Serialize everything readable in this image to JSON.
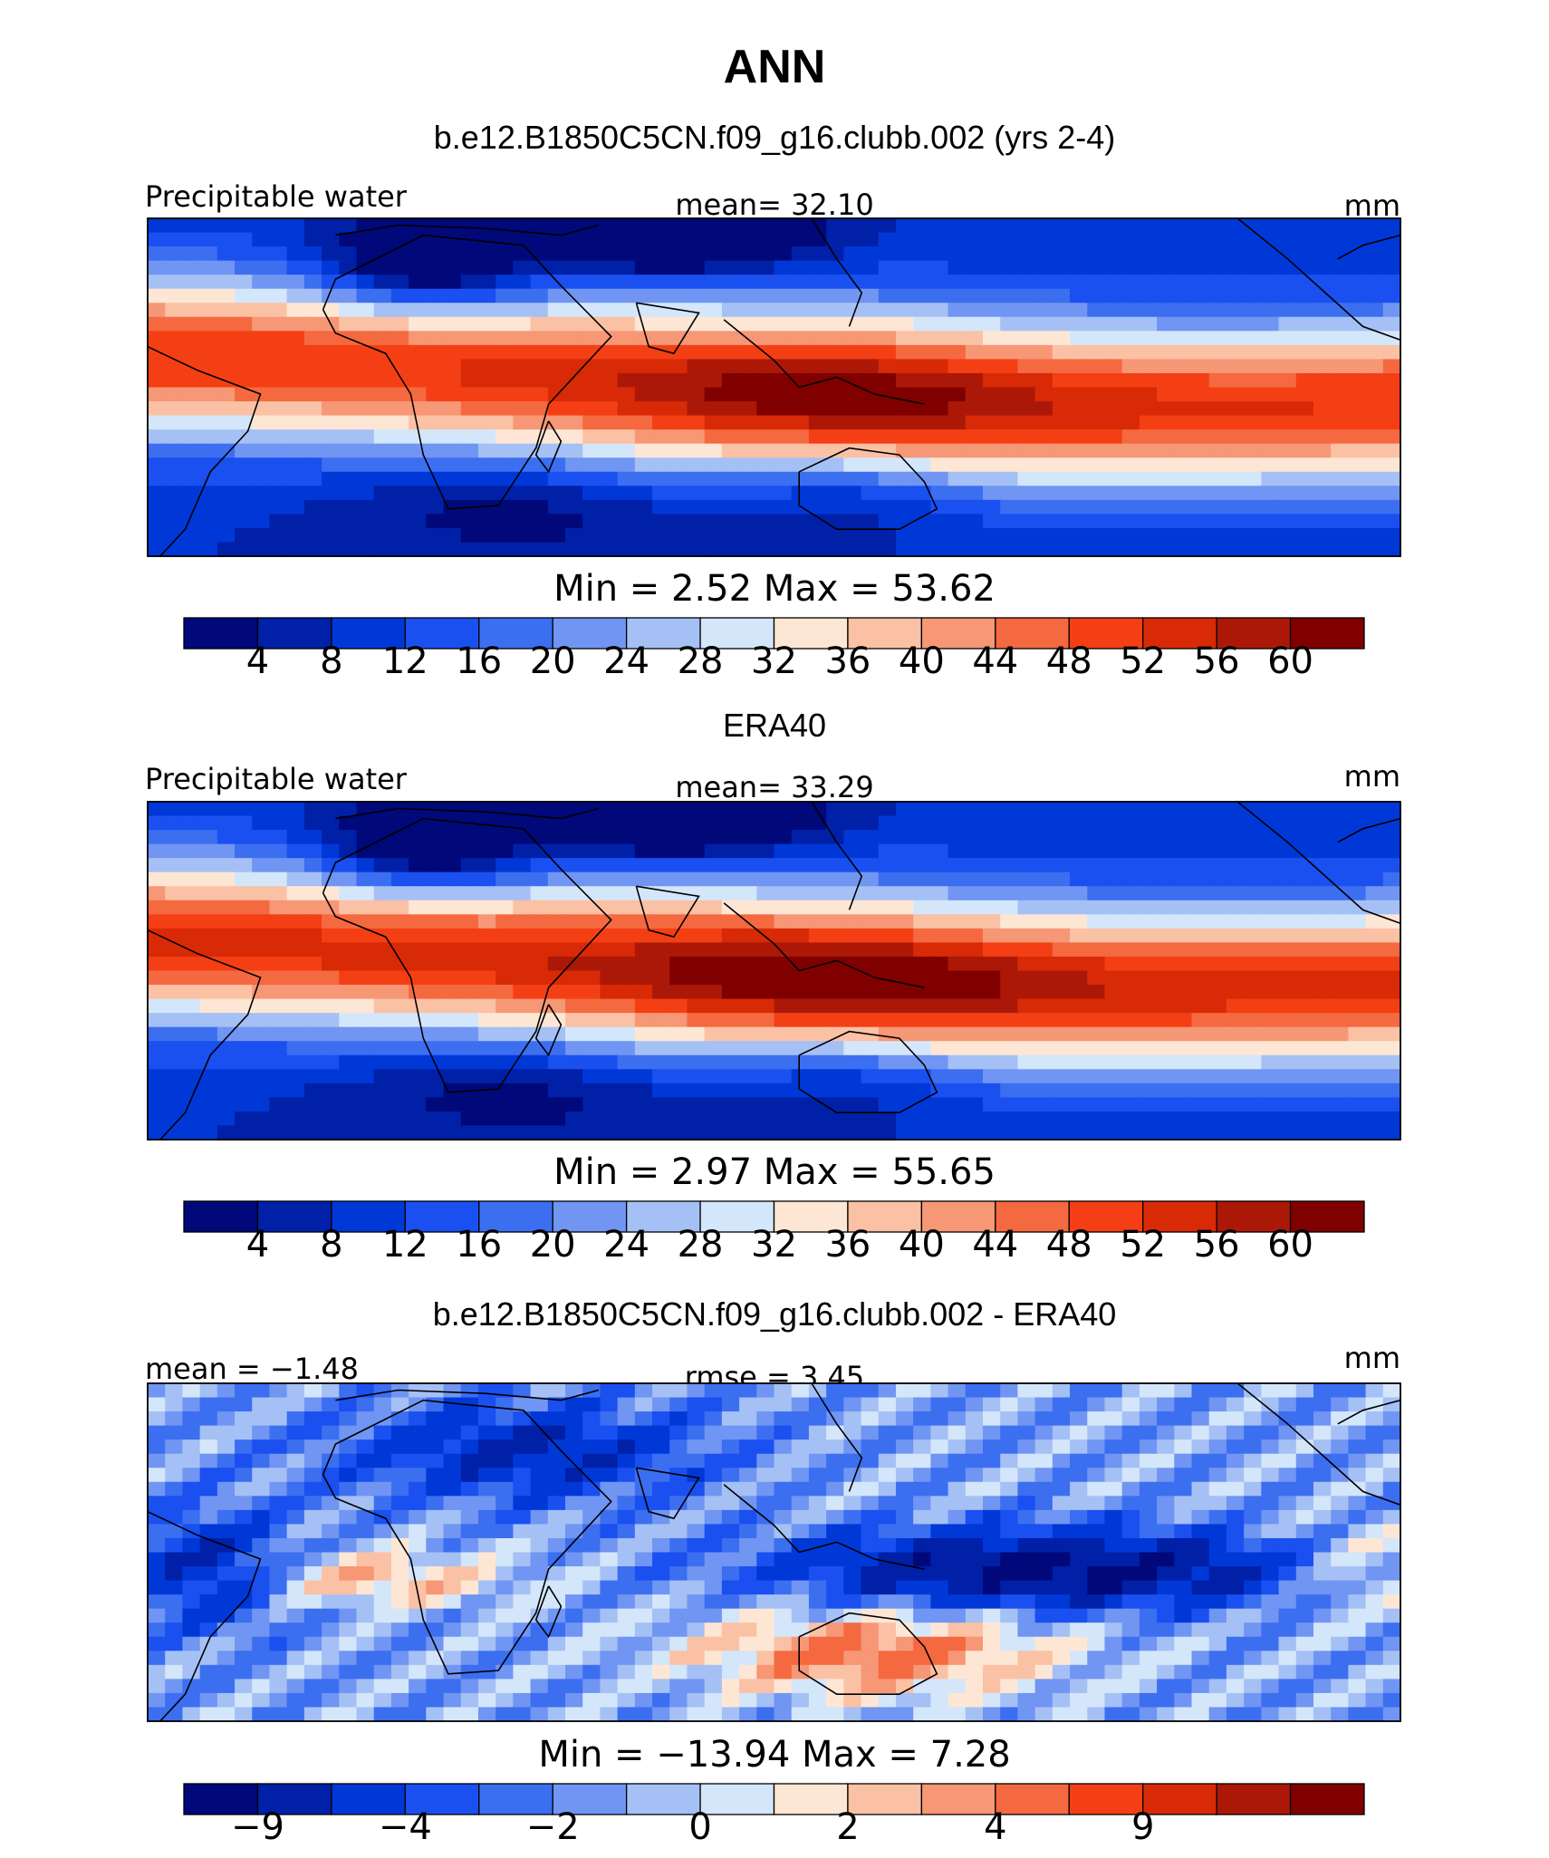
{
  "figure": {
    "title": "ANN",
    "colors": {
      "full_field": [
        "#00087a",
        "#0020a8",
        "#0038d8",
        "#1a4ff0",
        "#3c6ef0",
        "#7095f2",
        "#a5c0f5",
        "#d4e6fa",
        "#fde7d4",
        "#fbc1a5",
        "#f69776",
        "#f56940",
        "#f43f14",
        "#d82a06",
        "#ac1808",
        "#800000"
      ],
      "difference": [
        "#00087a",
        "#0020a8",
        "#0038d8",
        "#1a4ff0",
        "#3c6ef0",
        "#7095f2",
        "#a5c0f5",
        "#d4e6fa",
        "#fde7d4",
        "#fbc1a5",
        "#f69776",
        "#f56940",
        "#f43f14",
        "#d82a06",
        "#ac1808",
        "#800000"
      ],
      "coastline": "#000000",
      "frame": "#000000"
    }
  },
  "chart_data": [
    {
      "type": "heatmap",
      "title": "b.e12.B1850C5CN.f09_g16.clubb.002 (yrs 2-4)",
      "left_label": "Precipitable water",
      "center_label": "mean=   32.10",
      "units": "mm",
      "mean": 32.1,
      "min": 2.52,
      "max": 53.62,
      "min_max_label": "Min  =     2.52  Max  =    53.62",
      "colorbar_ticks": [
        "4",
        "8",
        "12",
        "16",
        "20",
        "24",
        "28",
        "32",
        "36",
        "40",
        "44",
        "48",
        "52",
        "56",
        "60"
      ],
      "colorbar_levels": [
        4,
        8,
        12,
        16,
        20,
        24,
        28,
        32,
        36,
        40,
        44,
        48,
        52,
        56,
        60
      ]
    },
    {
      "type": "heatmap",
      "title": "ERA40",
      "left_label": "Precipitable water",
      "center_label": "mean=   33.29",
      "units": "mm",
      "mean": 33.29,
      "min": 2.97,
      "max": 55.65,
      "min_max_label": "Min  =     2.97  Max  =    55.65",
      "colorbar_ticks": [
        "4",
        "8",
        "12",
        "16",
        "20",
        "24",
        "28",
        "32",
        "36",
        "40",
        "44",
        "48",
        "52",
        "56",
        "60"
      ],
      "colorbar_levels": [
        4,
        8,
        12,
        16,
        20,
        24,
        28,
        32,
        36,
        40,
        44,
        48,
        52,
        56,
        60
      ]
    },
    {
      "type": "heatmap",
      "title": "b.e12.B1850C5CN.f09_g16.clubb.002 - ERA40",
      "left_label": "mean  =   −1.48",
      "center_label": "rmse  =    3.45",
      "units": "mm",
      "mean": -1.48,
      "rmse": 3.45,
      "min": -13.94,
      "max": 7.28,
      "min_max_label": "Min  = −13.94  Max  =    7.28",
      "colorbar_ticks": [
        "−9",
        "−4",
        "−2",
        "0",
        "2",
        "4",
        "9"
      ],
      "colorbar_tick_boundaries": [
        1,
        3,
        5,
        7,
        9,
        11,
        13
      ]
    }
  ]
}
